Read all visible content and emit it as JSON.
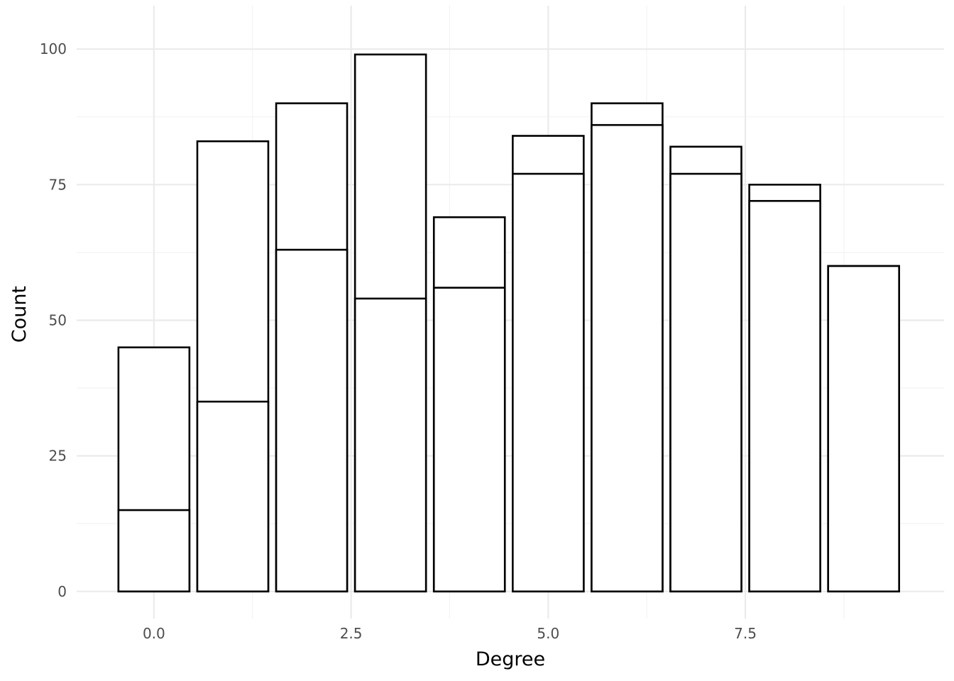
{
  "chart_data": {
    "type": "bar",
    "xlabel": "Degree",
    "ylabel": "Count",
    "xlim": [
      -0.98,
      10.02
    ],
    "ylim": [
      -5,
      108
    ],
    "x_ticks": [
      0.0,
      2.5,
      5.0,
      7.5
    ],
    "x_tick_labels": [
      "0.0",
      "2.5",
      "5.0",
      "7.5"
    ],
    "y_ticks": [
      0,
      25,
      50,
      75,
      100
    ],
    "y_tick_labels": [
      "0",
      "25",
      "50",
      "75",
      "100"
    ],
    "grid": true,
    "legend": "none",
    "bar_width": 0.9,
    "x": [
      0,
      1,
      2,
      3,
      4,
      5,
      6,
      7,
      8,
      9
    ],
    "series": [
      {
        "values": [
          15,
          35,
          63,
          54,
          56,
          77,
          86,
          77,
          72,
          60
        ]
      },
      {
        "values": [
          45,
          83,
          90,
          99,
          69,
          84,
          90,
          82,
          75,
          60
        ]
      }
    ],
    "colors": {
      "bar_fill": "#ffffff",
      "bar_stroke": "#000000",
      "grid": "#ebebeb",
      "tick_text": "#4d4d4d"
    }
  }
}
